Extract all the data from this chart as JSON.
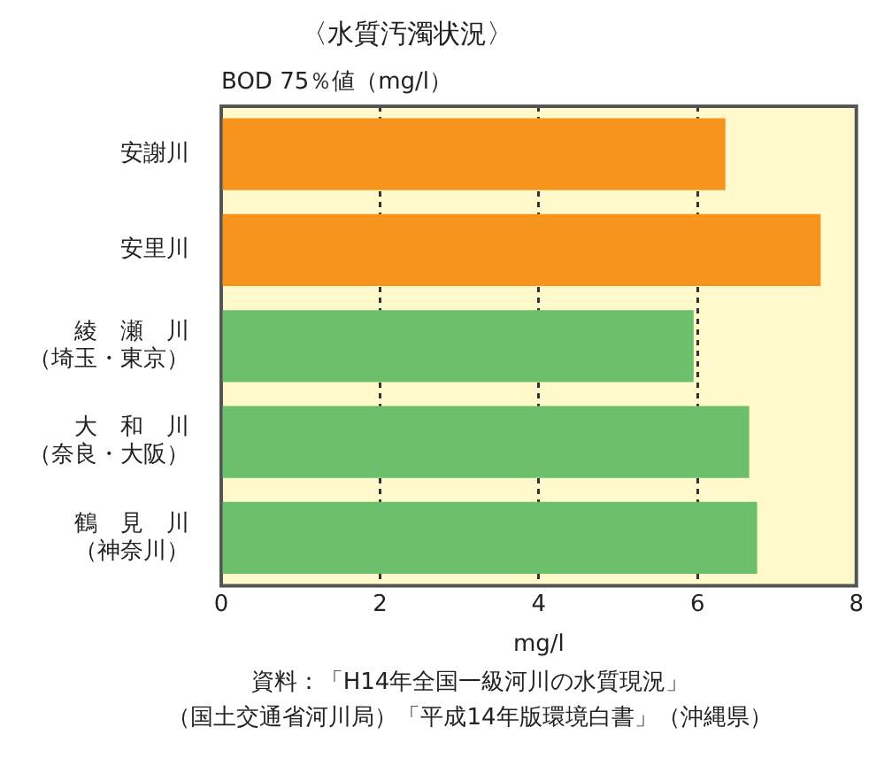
{
  "chart_data": {
    "type": "bar",
    "orientation": "horizontal",
    "title": "〈水質汚濁状況〉",
    "subtitle": "BOD 75％値（mg/l）",
    "xlabel": "mg/l",
    "categories": [
      "安謝川",
      "安里川",
      "綾　瀬　川（埼玉・東京）",
      "大　和　川（奈良・大阪）",
      "鶴　見　川（神奈川）"
    ],
    "values": [
      6.35,
      7.55,
      5.95,
      6.65,
      6.75
    ],
    "colors": [
      "#f7941d",
      "#f7941d",
      "#6cc06c",
      "#6cc06c",
      "#6cc06c"
    ],
    "xlim": [
      0,
      8
    ],
    "xticks": [
      0,
      2,
      4,
      6,
      8
    ],
    "grid": "x",
    "legend": false,
    "annotations": [
      "資料：「H14年全国一級河川の水質現況」",
      "（国土交通省河川局）「平成14年版環境白書」（沖縄県）"
    ]
  }
}
